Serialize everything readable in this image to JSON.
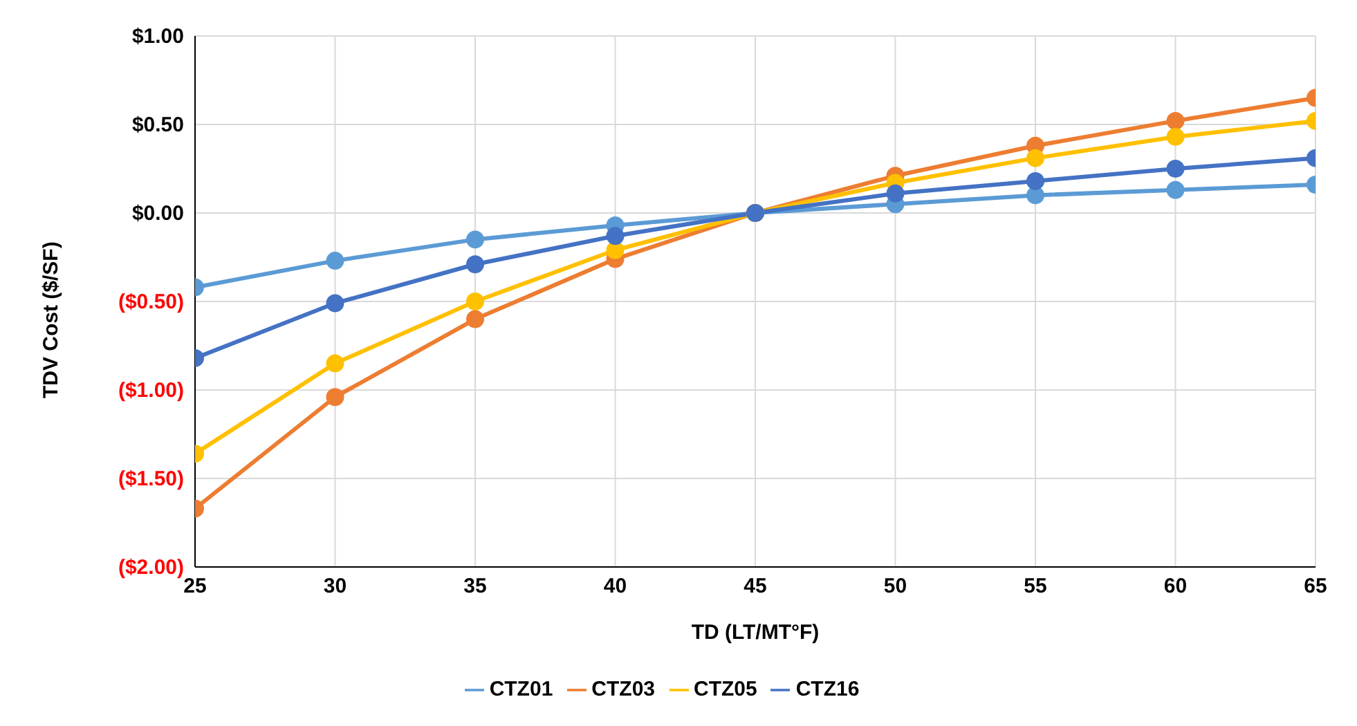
{
  "chart_data": {
    "type": "line",
    "xlabel": "TD (LT/MT°F)",
    "ylabel": "TDV Cost ($/SF)",
    "x": [
      25,
      30,
      35,
      40,
      45,
      50,
      55,
      60,
      65
    ],
    "series": [
      {
        "name": "CTZ01",
        "color": "#5b9bd5",
        "values": [
          -0.42,
          -0.27,
          -0.15,
          -0.07,
          0,
          0.05,
          0.1,
          0.13,
          0.16
        ]
      },
      {
        "name": "CTZ03",
        "color": "#ed7d31",
        "values": [
          -1.67,
          -1.04,
          -0.6,
          -0.26,
          0,
          0.21,
          0.38,
          0.52,
          0.65
        ]
      },
      {
        "name": "CTZ05",
        "color": "#ffc000",
        "values": [
          -1.36,
          -0.85,
          -0.5,
          -0.21,
          0,
          0.17,
          0.31,
          0.43,
          0.52
        ]
      },
      {
        "name": "CTZ16",
        "color": "#4472c4",
        "values": [
          -0.82,
          -0.51,
          -0.29,
          -0.13,
          0,
          0.11,
          0.18,
          0.25,
          0.31
        ]
      }
    ],
    "xlim": [
      25,
      65
    ],
    "xticks": [
      25,
      30,
      35,
      40,
      45,
      50,
      55,
      60,
      65
    ],
    "ylim": [
      -2,
      1
    ],
    "yticks": [
      {
        "value": -2,
        "label": "($2.00)"
      },
      {
        "value": -1.5,
        "label": "($1.50)"
      },
      {
        "value": -1,
        "label": "($1.00)"
      },
      {
        "value": -0.5,
        "label": "($0.50)"
      },
      {
        "value": 0,
        "label": "$0.00"
      },
      {
        "value": 0.5,
        "label": "$0.50"
      },
      {
        "value": 1,
        "label": "$1.00"
      }
    ],
    "grid": true,
    "legend": "bottom",
    "marker": "circle",
    "line_style": "solid"
  }
}
